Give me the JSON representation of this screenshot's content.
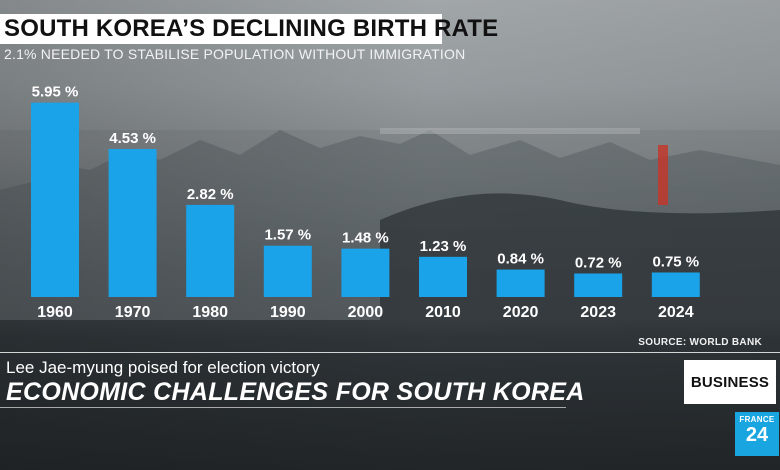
{
  "header": {
    "title": "SOUTH KOREA’S DECLINING BIRTH RATE",
    "subtitle": "2.1% NEEDED TO STABILISE POPULATION WITHOUT IMMIGRATION"
  },
  "colors": {
    "bar": "#1aa3e8",
    "accent": "#19a6e0"
  },
  "chart_data": {
    "type": "bar",
    "title": "SOUTH KOREA’S DECLINING BIRTH RATE",
    "categories": [
      "1960",
      "1970",
      "1980",
      "1990",
      "2000",
      "2010",
      "2020",
      "2023",
      "2024"
    ],
    "values": [
      5.95,
      4.53,
      2.82,
      1.57,
      1.48,
      1.23,
      0.84,
      0.72,
      0.75
    ],
    "value_labels": [
      "5.95 %",
      "4.53 %",
      "2.82 %",
      "1.57 %",
      "1.48 %",
      "1.23 %",
      "0.84 %",
      "0.72 %",
      "0.75 %"
    ],
    "ylim": [
      0,
      6
    ],
    "grid": false,
    "legend": "none"
  },
  "source": "SOURCE: WORLD BANK",
  "lower_third": {
    "subtitle": "Lee Jae-myung poised for election victory",
    "title": "ECONOMIC CHALLENGES FOR SOUTH KOREA",
    "badge": "BUSINESS"
  },
  "logo": {
    "line1": "FRANCE",
    "line2": "24"
  }
}
